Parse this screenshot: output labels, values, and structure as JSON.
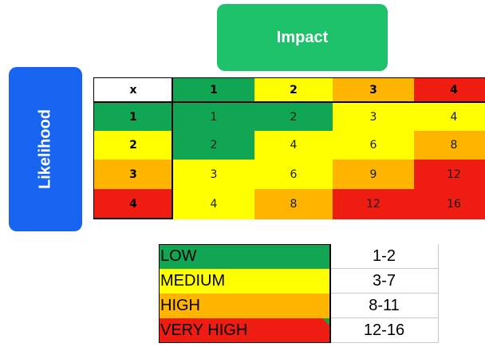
{
  "colors": {
    "green": "#11a653",
    "yellow": "#ffff00",
    "orange": "#ffb400",
    "red": "#ee1c11",
    "white": "#ffffff",
    "impact_box": "#1dc26a",
    "likelihood_box": "#1664f0"
  },
  "impact_label": "Impact",
  "likelihood_label": "Likelihood",
  "matrix": {
    "corner": "x",
    "impact_headers": [
      {
        "label": "1",
        "color": "green"
      },
      {
        "label": "2",
        "color": "yellow"
      },
      {
        "label": "3",
        "color": "orange"
      },
      {
        "label": "4",
        "color": "red"
      }
    ],
    "rows": [
      {
        "label": "1",
        "color": "green",
        "cells": [
          {
            "value": "1",
            "color": "green"
          },
          {
            "value": "2",
            "color": "green"
          },
          {
            "value": "3",
            "color": "yellow"
          },
          {
            "value": "4",
            "color": "yellow"
          }
        ]
      },
      {
        "label": "2",
        "color": "yellow",
        "cells": [
          {
            "value": "2",
            "color": "green"
          },
          {
            "value": "4",
            "color": "yellow"
          },
          {
            "value": "6",
            "color": "yellow"
          },
          {
            "value": "8",
            "color": "orange"
          }
        ]
      },
      {
        "label": "3",
        "color": "orange",
        "cells": [
          {
            "value": "3",
            "color": "yellow"
          },
          {
            "value": "6",
            "color": "yellow"
          },
          {
            "value": "9",
            "color": "orange"
          },
          {
            "value": "12",
            "color": "red"
          }
        ]
      },
      {
        "label": "4",
        "color": "red",
        "cells": [
          {
            "value": "4",
            "color": "yellow"
          },
          {
            "value": "8",
            "color": "orange"
          },
          {
            "value": "12",
            "color": "red"
          },
          {
            "value": "16",
            "color": "red"
          }
        ]
      }
    ]
  },
  "legend": [
    {
      "label": "LOW",
      "range": "1-2",
      "color": "green"
    },
    {
      "label": "MEDIUM",
      "range": "3-7",
      "color": "yellow"
    },
    {
      "label": "HIGH",
      "range": "8-11",
      "color": "orange"
    },
    {
      "label": "VERY HIGH",
      "range": "12-16",
      "color": "red"
    }
  ]
}
